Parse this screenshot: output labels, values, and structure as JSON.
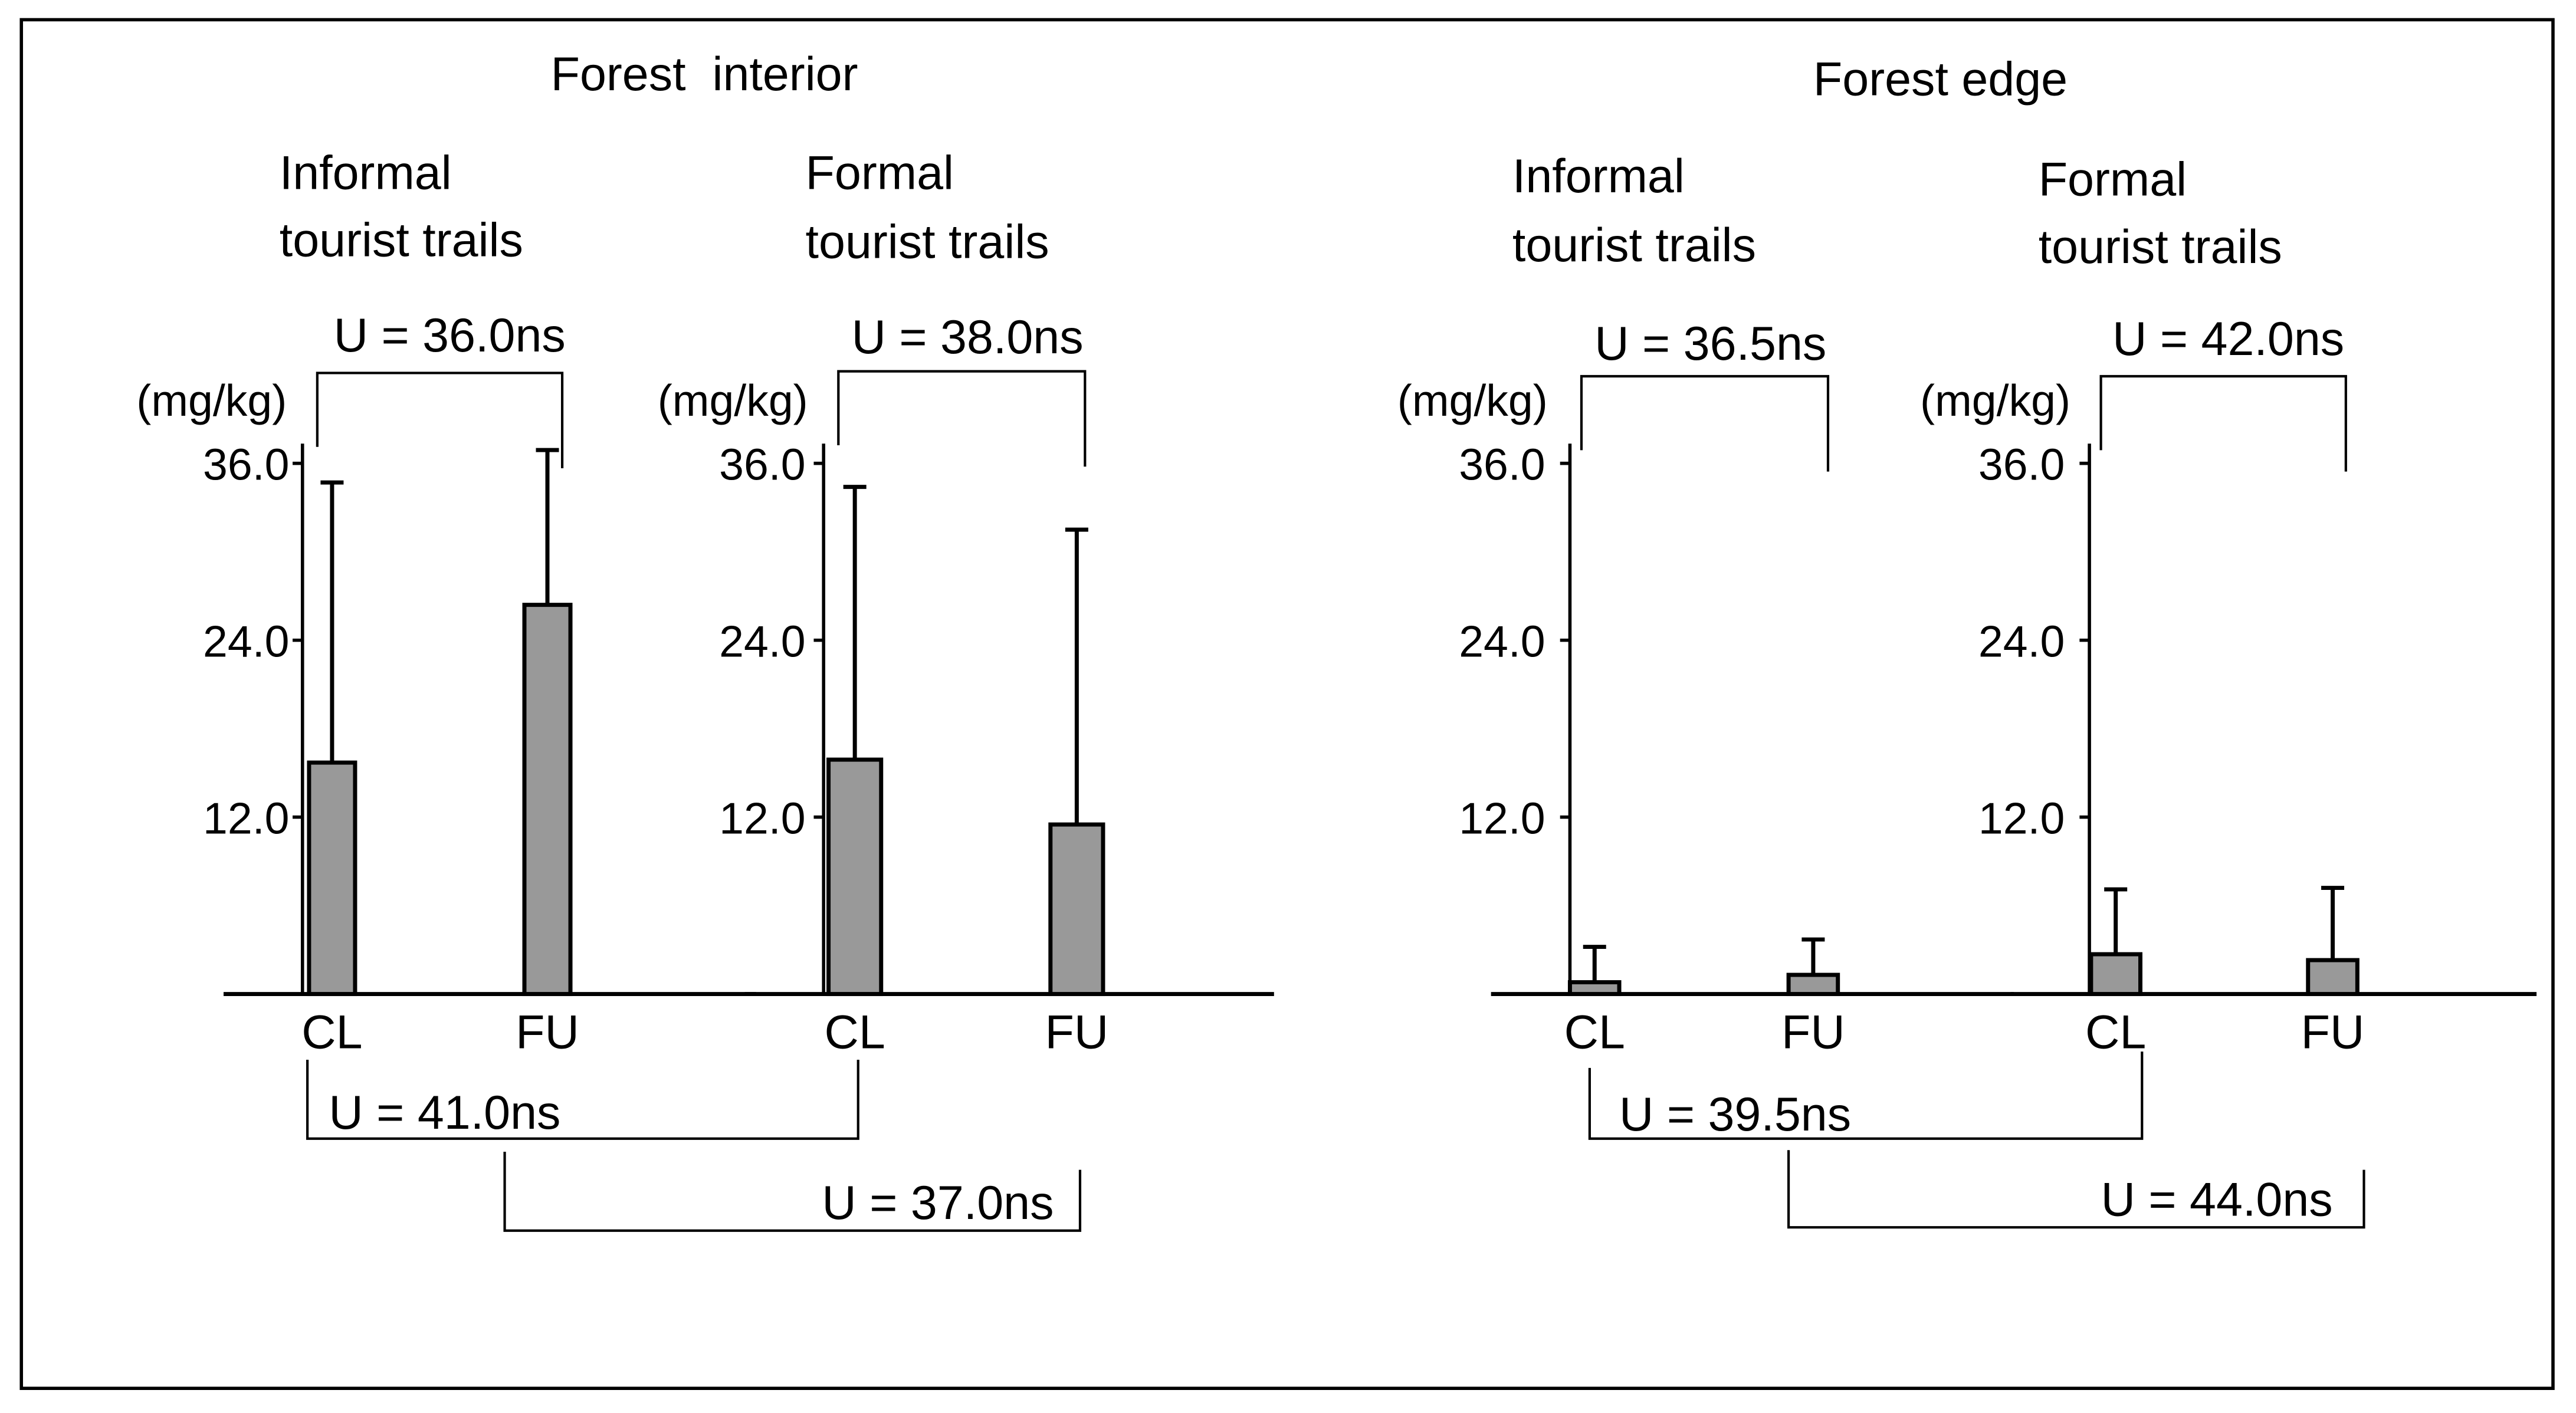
{
  "chart_data": [
    {
      "type": "bar",
      "group": "Forest  interior",
      "subtitle_lines": [
        "Informal",
        "tourist trails"
      ],
      "unit": "(mg/kg)",
      "ylim": [
        0,
        36.0
      ],
      "yticks": [
        "36.0",
        "24.0",
        "12.0"
      ],
      "categories": [
        "CL",
        "FU"
      ],
      "values": [
        15.7,
        26.4
      ],
      "errors": [
        19.0,
        10.5
      ],
      "test_top": "U = 36.0ns",
      "bar_color": "#999999"
    },
    {
      "type": "bar",
      "group": "Forest  interior",
      "subtitle_lines": [
        "Formal",
        "tourist trails"
      ],
      "unit": "(mg/kg)",
      "ylim": [
        0,
        36.0
      ],
      "yticks": [
        "36.0",
        "24.0",
        "12.0"
      ],
      "categories": [
        "CL",
        "FU"
      ],
      "values": [
        15.9,
        11.5
      ],
      "errors": [
        18.5,
        20.0
      ],
      "test_top": "U = 38.0ns",
      "bar_color": "#999999"
    },
    {
      "type": "bar",
      "group": "Forest edge",
      "subtitle_lines": [
        "Informal",
        "tourist trails"
      ],
      "unit": "(mg/kg)",
      "ylim": [
        0,
        36.0
      ],
      "yticks": [
        "36.0",
        "24.0",
        "12.0"
      ],
      "categories": [
        "CL",
        "FU"
      ],
      "values": [
        0.8,
        1.3
      ],
      "errors": [
        2.4,
        2.4
      ],
      "test_top": "U = 36.5ns",
      "bar_color": "#999999"
    },
    {
      "type": "bar",
      "group": "Forest edge",
      "subtitle_lines": [
        "Formal",
        "tourist trails"
      ],
      "unit": "(mg/kg)",
      "ylim": [
        0,
        36.0
      ],
      "yticks": [
        "36.0",
        "24.0",
        "12.0"
      ],
      "categories": [
        "CL",
        "FU"
      ],
      "values": [
        2.7,
        2.3
      ],
      "errors": [
        4.4,
        4.9
      ],
      "test_top": "U = 42.0ns",
      "bar_color": "#999999"
    }
  ],
  "headings": {
    "interior": "Forest  interior",
    "edge": "Forest edge"
  },
  "comparisons": {
    "interior_cl": "U = 41.0ns",
    "interior_fu": "U = 37.0ns",
    "edge_cl": "U = 39.5ns",
    "edge_fu": "U = 44.0ns"
  }
}
